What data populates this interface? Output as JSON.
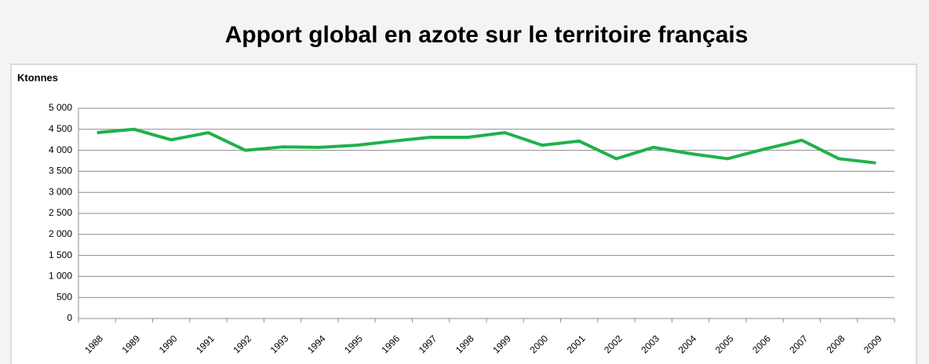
{
  "chart_data": {
    "type": "line",
    "title": "Apport global en azote sur le territoire français",
    "y_label": "Ktonnes",
    "categories": [
      "1988",
      "1989",
      "1990",
      "1991",
      "1992",
      "1993",
      "1994",
      "1995",
      "1996",
      "1997",
      "1998",
      "1999",
      "2000",
      "2001",
      "2002",
      "2003",
      "2004",
      "2005",
      "2006",
      "2007",
      "2008",
      "2009"
    ],
    "series": [
      {
        "color": "#1fb14b",
        "values": [
          4420,
          4500,
          4250,
          4420,
          4000,
          4080,
          4070,
          4120,
          4220,
          4310,
          4310,
          4420,
          4120,
          4220,
          3800,
          4070,
          3920,
          3800,
          4030,
          4240,
          3800,
          3700
        ]
      }
    ],
    "ylim": [
      0,
      5000
    ],
    "yticks": [
      0,
      500,
      {
        "value": 1000,
        "label": "1 000"
      },
      {
        "value": 1500,
        "label": "1 500"
      },
      {
        "value": 2000,
        "label": "2 000"
      },
      {
        "value": 2500,
        "label": "2 500"
      },
      {
        "value": 3000,
        "label": "3 000"
      },
      {
        "value": 3500,
        "label": "3 500"
      },
      {
        "value": 4000,
        "label": "4 000"
      },
      {
        "value": 4500,
        "label": "4 500"
      },
      {
        "value": 5000,
        "label": "5 000"
      }
    ],
    "grid": true
  }
}
